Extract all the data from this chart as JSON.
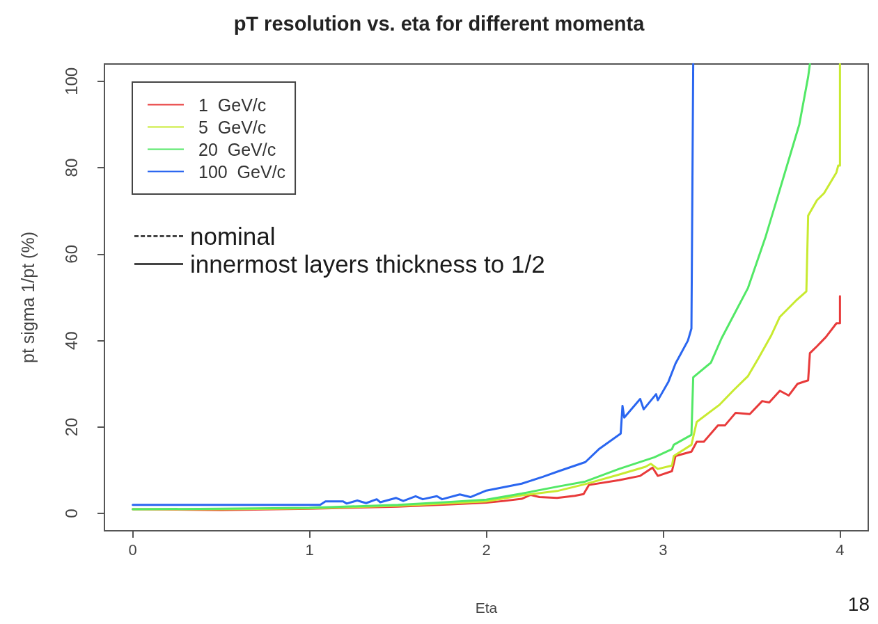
{
  "chart_data": {
    "type": "line",
    "title": "pT resolution vs. eta for different momenta",
    "xlabel": "Eta",
    "ylabel": "pt sigma 1/pt (%)",
    "xlim": [
      -0.16,
      4.16
    ],
    "xticks": [
      0,
      1,
      2,
      3,
      4
    ],
    "ylim": [
      -4,
      104
    ],
    "yticks": [
      0,
      20,
      40,
      60,
      80,
      100
    ],
    "legend": "top left",
    "line_style": "solid",
    "annotations": [
      "nominal",
      "innermost layers thickness to 1/2",
      "18"
    ],
    "series": [
      {
        "name": "1  GeV/c",
        "color": "#e83a3a",
        "x": [
          0,
          0.5,
          1,
          1.5,
          1.8,
          2,
          2.1,
          2.2,
          2.25,
          2.3,
          2.4,
          2.5,
          2.55,
          2.58,
          2.75,
          2.87,
          2.94,
          2.97,
          3.05,
          3.07,
          3.16,
          3.19,
          3.23,
          3.31,
          3.35,
          3.41,
          3.49,
          3.56,
          3.6,
          3.66,
          3.71,
          3.76,
          3.82,
          3.83,
          3.87,
          3.92,
          3.98,
          4.0,
          4.0
        ],
        "values": [
          1,
          0.8,
          1.1,
          1.6,
          2.1,
          2.5,
          2.9,
          3.4,
          4.3,
          3.8,
          3.6,
          4.1,
          4.5,
          6.6,
          7.7,
          8.7,
          10.6,
          8.7,
          9.8,
          13.3,
          14.3,
          16.6,
          16.6,
          20.4,
          20.4,
          23.3,
          23,
          26,
          25.7,
          28.4,
          27.3,
          30,
          30.8,
          37.1,
          38.7,
          40.8,
          44,
          44,
          50.3
        ]
      },
      {
        "name": "5  GeV/c",
        "color": "#c8ea30",
        "x": [
          0,
          0.5,
          1,
          1.5,
          1.8,
          2,
          2.2,
          2.4,
          2.56,
          2.75,
          2.9,
          2.93,
          2.97,
          3.05,
          3.06,
          3.16,
          3.19,
          3.32,
          3.4,
          3.48,
          3.54,
          3.61,
          3.66,
          3.75,
          3.81,
          3.82,
          3.87,
          3.91,
          3.98,
          3.99,
          4.0,
          4.0
        ],
        "values": [
          1,
          1,
          1.2,
          1.8,
          2.4,
          2.8,
          4.2,
          5.2,
          6.8,
          9,
          10.8,
          11.5,
          10.3,
          11.1,
          13.3,
          15.9,
          21.2,
          25.2,
          28.6,
          31.8,
          36,
          41.1,
          45.5,
          49.2,
          51.4,
          68.9,
          72.5,
          74.1,
          78.9,
          80.5,
          80.5,
          104
        ]
      },
      {
        "name": "20  GeV/c",
        "color": "#52e866",
        "x": [
          0,
          0.5,
          1,
          1.5,
          1.8,
          2,
          2.2,
          2.4,
          2.56,
          2.75,
          2.95,
          3.05,
          3.06,
          3.16,
          3.17,
          3.27,
          3.33,
          3.48,
          3.58,
          3.65,
          3.77,
          3.82,
          3.83
        ],
        "values": [
          1,
          1.1,
          1.3,
          2,
          2.7,
          3.2,
          4.6,
          6.2,
          7.4,
          10.3,
          13,
          14.9,
          15.9,
          18.2,
          31.5,
          34.9,
          40.5,
          52.2,
          64.1,
          73.6,
          90,
          101,
          104
        ]
      },
      {
        "name": "100  GeV/c",
        "color": "#2a66f0",
        "x": [
          0,
          0.5,
          1.06,
          1.09,
          1.19,
          1.21,
          1.27,
          1.32,
          1.38,
          1.4,
          1.49,
          1.53,
          1.6,
          1.64,
          1.72,
          1.75,
          1.85,
          1.91,
          2.0,
          2.2,
          2.32,
          2.41,
          2.56,
          2.64,
          2.76,
          2.77,
          2.78,
          2.87,
          2.89,
          2.96,
          2.97,
          3.03,
          3.07,
          3.14,
          3.16,
          3.17
        ],
        "values": [
          2,
          2,
          2,
          2.8,
          2.8,
          2.3,
          3,
          2.4,
          3.3,
          2.6,
          3.6,
          2.9,
          4,
          3.3,
          4,
          3.3,
          4.4,
          3.8,
          5.3,
          6.9,
          8.5,
          9.8,
          11.9,
          15,
          18.5,
          24.9,
          22.2,
          26.5,
          24.1,
          27.6,
          26.2,
          30.5,
          34.7,
          40,
          42.8,
          104
        ]
      }
    ]
  }
}
